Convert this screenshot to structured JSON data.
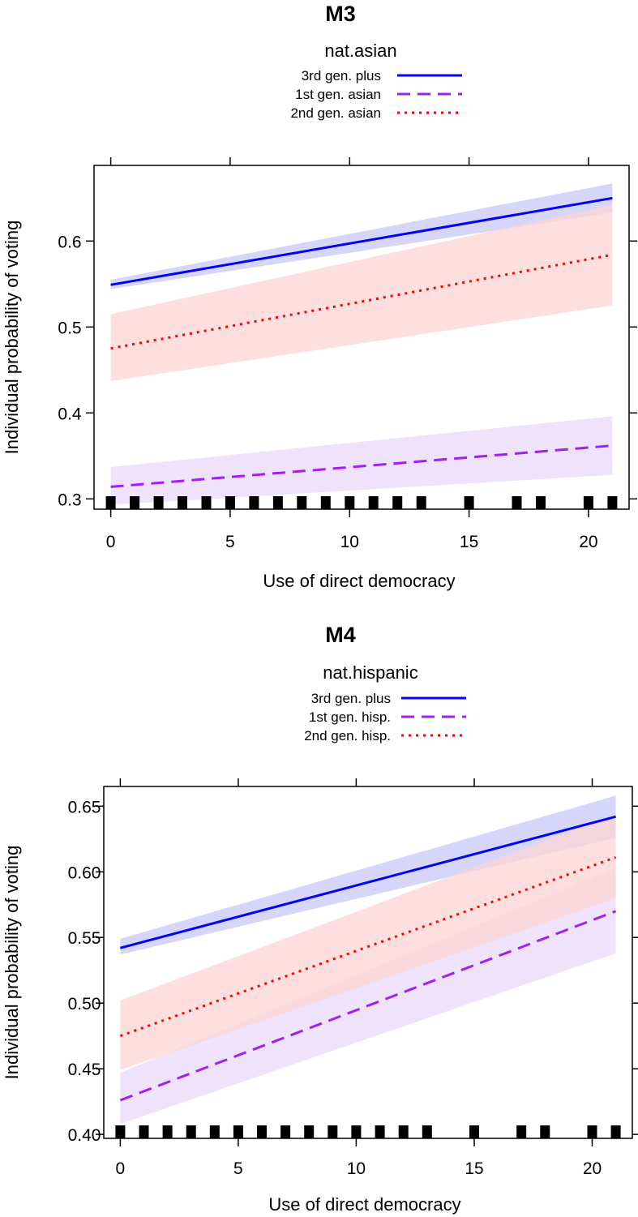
{
  "chart_data": [
    {
      "type": "line",
      "title": "M3",
      "legend_title": "nat.asian",
      "xlabel": "Use of direct democracy",
      "ylabel": "Individual probability of voting",
      "xlim": [
        -0.7,
        21.7
      ],
      "ylim": [
        0.288,
        0.688
      ],
      "xticks": [
        0,
        5,
        10,
        15,
        20
      ],
      "yticks": [
        0.3,
        0.4,
        0.5,
        0.6
      ],
      "ytick_labels": [
        "0.3",
        "0.4",
        "0.5",
        "0.6"
      ],
      "grid": false,
      "legend_position": "top-center",
      "series": [
        {
          "name": "3rd gen. plus",
          "color": "#0000ff",
          "band_color": "#c8c8fa",
          "dash": "solid",
          "x": [
            0,
            21
          ],
          "y": [
            0.549,
            0.65
          ],
          "lower": [
            0.544,
            0.633
          ],
          "upper": [
            0.555,
            0.667
          ]
        },
        {
          "name": "1st gen. asian",
          "color": "#a020f0",
          "band_color": "#e8d9f9",
          "dash": "long-dash",
          "x": [
            0,
            21
          ],
          "y": [
            0.314,
            0.362
          ],
          "lower": [
            0.293,
            0.328
          ],
          "upper": [
            0.337,
            0.396
          ]
        },
        {
          "name": "2nd gen. asian",
          "color": "#ff0000",
          "band_color": "#fcd4d4",
          "dash": "dotted",
          "x": [
            0,
            21
          ],
          "y": [
            0.475,
            0.584
          ],
          "lower": [
            0.437,
            0.525
          ],
          "upper": [
            0.515,
            0.642
          ]
        }
      ],
      "rug": [
        0,
        1,
        2,
        3,
        4,
        5,
        6,
        7,
        8,
        9,
        10,
        11,
        12,
        13,
        15,
        17,
        18,
        20,
        21
      ]
    },
    {
      "type": "line",
      "title": "M4",
      "legend_title": "nat.hispanic",
      "xlabel": "Use of direct democracy",
      "ylabel": "Individual probability of voting",
      "xlim": [
        -0.7,
        21.7
      ],
      "ylim": [
        0.397,
        0.665
      ],
      "xticks": [
        0,
        5,
        10,
        15,
        20
      ],
      "yticks": [
        0.4,
        0.45,
        0.5,
        0.55,
        0.6,
        0.65
      ],
      "ytick_labels": [
        "0.40",
        "0.45",
        "0.50",
        "0.55",
        "0.60",
        "0.65"
      ],
      "grid": false,
      "legend_position": "top-center",
      "series": [
        {
          "name": "3rd gen. plus",
          "color": "#0000ff",
          "band_color": "#c8c8fa",
          "dash": "solid",
          "x": [
            0,
            21
          ],
          "y": [
            0.542,
            0.642
          ],
          "lower": [
            0.537,
            0.626
          ],
          "upper": [
            0.549,
            0.658
          ]
        },
        {
          "name": "1st gen. hisp.",
          "color": "#a020f0",
          "band_color": "#e8d9f9",
          "dash": "long-dash",
          "x": [
            0,
            21
          ],
          "y": [
            0.426,
            0.57
          ],
          "lower": [
            0.408,
            0.538
          ],
          "upper": [
            0.447,
            0.603
          ]
        },
        {
          "name": "2nd gen. hisp.",
          "color": "#ff0000",
          "band_color": "#fcd4d4",
          "dash": "dotted",
          "x": [
            0,
            21
          ],
          "y": [
            0.475,
            0.611
          ],
          "lower": [
            0.449,
            0.58
          ],
          "upper": [
            0.502,
            0.644
          ]
        }
      ],
      "rug": [
        0,
        1,
        2,
        3,
        4,
        5,
        6,
        7,
        8,
        9,
        10,
        11,
        12,
        13,
        15,
        17,
        18,
        20,
        21
      ]
    }
  ]
}
